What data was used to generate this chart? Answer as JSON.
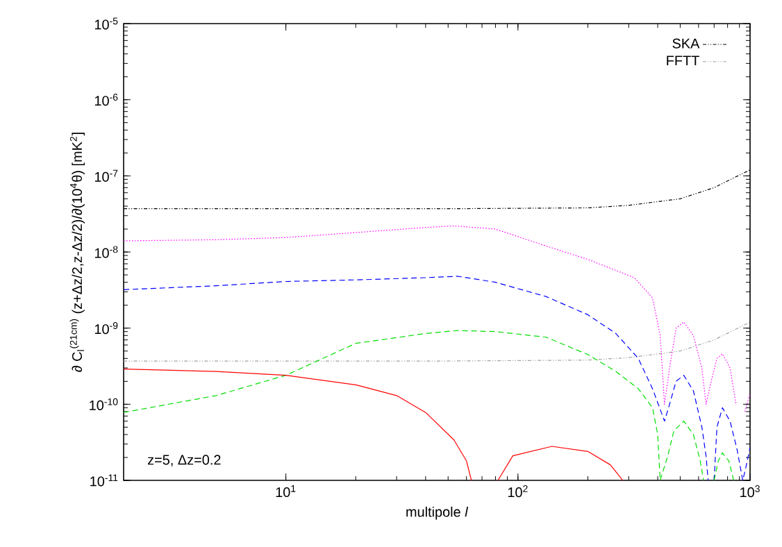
{
  "chart_data": {
    "type": "line",
    "xlabel": "multipole *l*",
    "ylabel": "∂ C$_{l}$$^{(21cm)}$ (z+Δz/2,z-Δz/2)/∂(10$^{4}$θ) [mK$^{2}$]",
    "annotations": [
      "z=5, Δz=0.2"
    ],
    "log": "xy",
    "legend": "top right",
    "xlim": [
      2,
      1000
    ],
    "ylim": [
      1e-11,
      1e-05
    ],
    "xticks": [
      {
        "value": 10,
        "label": "10$^{1}$"
      },
      {
        "value": 100,
        "label": "10$^{2}$"
      },
      {
        "value": 1000,
        "label": "10$^{3}$"
      }
    ],
    "yticks": [
      {
        "value": 1e-11,
        "label": "10$^{-11}$"
      },
      {
        "value": 1e-10,
        "label": "10$^{-10}$"
      },
      {
        "value": 1e-09,
        "label": "10$^{-9}$"
      },
      {
        "value": 1e-08,
        "label": "10$^{-8}$"
      },
      {
        "value": 1e-07,
        "label": "10$^{-7}$"
      },
      {
        "value": 1e-06,
        "label": "10$^{-6}$"
      },
      {
        "value": 1e-05,
        "label": "10$^{-5}$"
      }
    ],
    "series": [
      {
        "name": "SKA",
        "color": "#000000",
        "line_style": "dashdot",
        "x": [
          2,
          50,
          200,
          300,
          500,
          700,
          1000
        ],
        "values": [
          3.7e-08,
          3.7e-08,
          3.8e-08,
          4.1e-08,
          5e-08,
          7e-08,
          1.2e-07
        ]
      },
      {
        "name": "FFTT",
        "color": "#a0a0a0",
        "line_style": "dashdot",
        "x": [
          2,
          50,
          200,
          300,
          500,
          700,
          1000
        ],
        "values": [
          3.7e-10,
          3.7e-10,
          3.8e-10,
          4.1e-10,
          5e-10,
          7e-10,
          1.2e-09
        ]
      },
      {
        "color": "#ff00ff",
        "line_style": "dotted",
        "x": [
          2,
          5,
          10,
          20,
          40,
          53,
          80,
          132,
          200,
          317,
          380,
          410,
          428,
          450,
          480,
          518,
          570,
          620,
          646,
          680,
          720,
          760,
          820,
          870,
          910,
          950,
          1000
        ],
        "values": [
          1.4e-08,
          1.45e-08,
          1.55e-08,
          1.8e-08,
          2.1e-08,
          2.2e-08,
          2e-08,
          1.2e-08,
          8e-09,
          4.6e-09,
          2.5e-09,
          8e-10,
          1e-10,
          3e-10,
          1e-09,
          1.2e-09,
          8e-10,
          3e-10,
          1e-10,
          2e-10,
          4e-10,
          4.6e-10,
          3e-10,
          1e-10,
          null,
          8e-11,
          1.4e-10
        ]
      },
      {
        "color": "#0000ff",
        "line_style": "dashed",
        "x": [
          2,
          5,
          10,
          20,
          40,
          55,
          80,
          132,
          200,
          264,
          330,
          380,
          428,
          450,
          480,
          518,
          570,
          620,
          646,
          660,
          680,
          700,
          720,
          760,
          820,
          880,
          930,
          960,
          1000
        ],
        "values": [
          3.2e-09,
          3.6e-09,
          4.1e-09,
          4.3e-09,
          4.6e-09,
          4.8e-09,
          4e-09,
          2.6e-09,
          1.5e-09,
          8.5e-10,
          4e-10,
          1.6e-10,
          6e-11,
          1e-10,
          2e-10,
          2.4e-10,
          1.5e-10,
          5e-11,
          2.1e-11,
          1e-11,
          null,
          1e-11,
          5e-11,
          9e-11,
          6e-11,
          2.5e-11,
          1e-11,
          1.5e-11,
          2.7e-11
        ]
      },
      {
        "color": "#00dd00",
        "line_style": "dashed",
        "x": [
          2,
          5,
          10,
          20,
          40,
          55,
          80,
          132,
          200,
          264,
          330,
          380,
          400,
          410,
          440,
          470,
          518,
          570,
          610,
          630,
          665,
          700,
          730,
          760,
          810,
          850
        ],
        "values": [
          7.8e-11,
          1.3e-10,
          2.4e-10,
          6.3e-10,
          8.5e-10,
          9.3e-10,
          9e-10,
          7.6e-10,
          4.5e-10,
          2.7e-10,
          1.6e-10,
          9e-11,
          4e-11,
          1e-11,
          2e-11,
          4.5e-11,
          6e-11,
          4e-11,
          1.8e-11,
          1e-11,
          null,
          1e-11,
          1.8e-11,
          2.3e-11,
          1.8e-11,
          1e-11
        ]
      },
      {
        "color": "#ff0000",
        "line_style": "solid",
        "x": [
          2,
          5,
          10,
          20,
          30,
          40,
          53,
          60,
          63,
          72,
          82,
          95,
          140,
          200,
          250,
          283
        ],
        "values": [
          2.9e-10,
          2.7e-10,
          2.4e-10,
          1.8e-10,
          1.3e-10,
          7.8e-11,
          3.4e-11,
          1.8e-11,
          1e-11,
          null,
          1e-11,
          2.1e-11,
          2.8e-11,
          2.4e-11,
          1.6e-11,
          1e-11
        ]
      }
    ]
  }
}
